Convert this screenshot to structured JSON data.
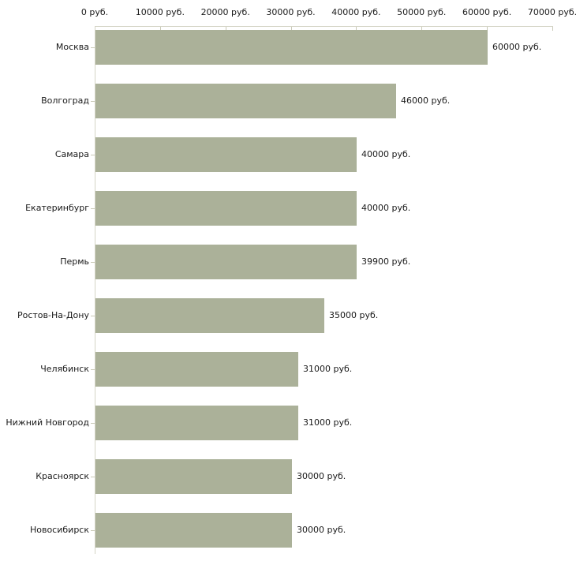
{
  "chart_data": {
    "type": "bar",
    "orientation": "horizontal",
    "title": "",
    "xlabel": "",
    "ylabel": "",
    "categories": [
      "Москва",
      "Волгоград",
      "Самара",
      "Екатеринбург",
      "Пермь",
      "Ростов-На-Дону",
      "Челябинск",
      "Нижний Новгород",
      "Красноярск",
      "Новосибирск"
    ],
    "values": [
      60000,
      46000,
      40000,
      40000,
      39900,
      35000,
      31000,
      31000,
      30000,
      30000
    ],
    "value_labels": [
      "60000 руб.",
      "46000 руб.",
      "40000 руб.",
      "40000 руб.",
      "39900 руб.",
      "35000 руб.",
      "31000 руб.",
      "31000 руб.",
      "30000 руб.",
      "30000 руб."
    ],
    "x_axis": {
      "position": "top",
      "min": 0,
      "max": 70000,
      "tick_interval": 10000,
      "tick_labels": [
        "0 руб.",
        "10000 руб.",
        "20000 руб.",
        "30000 руб.",
        "40000 руб.",
        "50000 руб.",
        "60000 руб.",
        "70000 руб."
      ]
    },
    "grid": false,
    "legend": false,
    "colors": {
      "bar": "#abb199",
      "axis_line": "#d4d4c6",
      "tick": "#c9c9b6",
      "text": "#1a1a1a",
      "background": "#ffffff"
    }
  }
}
